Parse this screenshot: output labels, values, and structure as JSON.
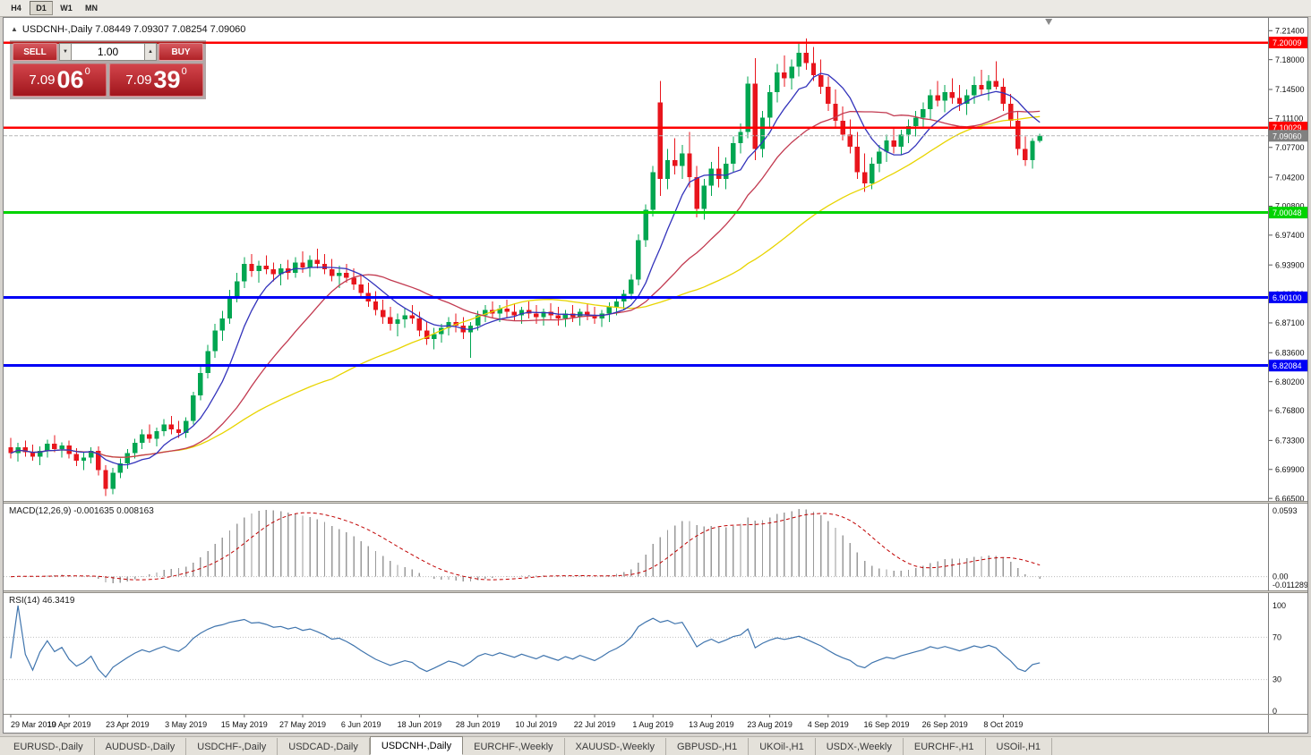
{
  "toolbar": {
    "timeframes": [
      {
        "label": "H4",
        "active": false
      },
      {
        "label": "D1",
        "active": true
      },
      {
        "label": "W1",
        "active": false
      },
      {
        "label": "MN",
        "active": false
      }
    ]
  },
  "chart": {
    "info_line": "USDCNH-,Daily  7.08449 7.09307 7.08254 7.09060",
    "symbol": "USDCNH-,Daily",
    "ohlc": {
      "open": "7.08449",
      "high": "7.09307",
      "low": "7.08254",
      "close": "7.09060"
    }
  },
  "icons": {
    "one_click_collapse": "▲",
    "volume_down": "▼",
    "volume_up": "▲"
  },
  "trade_panel": {
    "sell_label": "SELL",
    "buy_label": "BUY",
    "volume": "1.00",
    "sell_price": {
      "big": "7.09",
      "pips": "06",
      "point": "0"
    },
    "buy_price": {
      "big": "7.09",
      "pips": "39",
      "point": "0"
    }
  },
  "macd_pane": {
    "label": "MACD(12,26,9) -0.001635 0.008163",
    "axis_labels": [
      "0.0593",
      "0.00",
      "-0.011289"
    ]
  },
  "rsi_pane": {
    "label": "RSI(14) 46.3419",
    "axis_labels": [
      "100",
      "70",
      "30",
      "0"
    ],
    "levels": [
      70,
      30
    ]
  },
  "tabs": [
    {
      "label": "EURUSD-,Daily",
      "active": false
    },
    {
      "label": "AUDUSD-,Daily",
      "active": false
    },
    {
      "label": "USDCHF-,Daily",
      "active": false
    },
    {
      "label": "USDCAD-,Daily",
      "active": false
    },
    {
      "label": "USDCNH-,Daily",
      "active": true
    },
    {
      "label": "EURCHF-,Weekly",
      "active": false
    },
    {
      "label": "XAUUSD-,Weekly",
      "active": false
    },
    {
      "label": "GBPUSD-,H1",
      "active": false
    },
    {
      "label": "UKOil-,H1",
      "active": false
    },
    {
      "label": "USDX-,Weekly",
      "active": false
    },
    {
      "label": "EURCHF-,H1",
      "active": false
    },
    {
      "label": "USOil-,H1",
      "active": false
    }
  ],
  "chart_data": {
    "type": "candlestick",
    "title": "USDCNH-,Daily",
    "ylim": [
      6.662,
      7.229
    ],
    "x_start": 8,
    "x_step": 8.15,
    "y_ticks": [
      "7.21400",
      "7.18000",
      "7.14500",
      "7.11100",
      "7.07700",
      "7.04200",
      "7.00800",
      "6.97400",
      "6.93900",
      "6.90500",
      "6.87100",
      "6.83600",
      "6.80200",
      "6.76800",
      "6.73300",
      "6.69900",
      "6.66500"
    ],
    "x_labels": [
      {
        "i": 0,
        "label": "29 Mar 2019"
      },
      {
        "i": 8,
        "label": "10 Apr 2019"
      },
      {
        "i": 16,
        "label": "23 Apr 2019"
      },
      {
        "i": 24,
        "label": "3 May 2019"
      },
      {
        "i": 32,
        "label": "15 May 2019"
      },
      {
        "i": 40,
        "label": "27 May 2019"
      },
      {
        "i": 48,
        "label": "6 Jun 2019"
      },
      {
        "i": 56,
        "label": "18 Jun 2019"
      },
      {
        "i": 64,
        "label": "28 Jun 2019"
      },
      {
        "i": 72,
        "label": "10 Jul 2019"
      },
      {
        "i": 80,
        "label": "22 Jul 2019"
      },
      {
        "i": 88,
        "label": "1 Aug 2019"
      },
      {
        "i": 96,
        "label": "13 Aug 2019"
      },
      {
        "i": 104,
        "label": "23 Aug 2019"
      },
      {
        "i": 112,
        "label": "4 Sep 2019"
      },
      {
        "i": 120,
        "label": "16 Sep 2019"
      },
      {
        "i": 128,
        "label": "26 Sep 2019"
      },
      {
        "i": 136,
        "label": "8 Oct 2019"
      }
    ],
    "colors": {
      "bull": "#00a651",
      "bear": "#e8151c",
      "macd_hist": "#9a9a9a",
      "macd_signal": "#c00000",
      "rsi_line": "#3f74ad"
    },
    "moving_averages": [
      {
        "period": 8,
        "color": "#3333bb"
      },
      {
        "period": 20,
        "color": "#c23a50"
      },
      {
        "period": 45,
        "color": "#e8d400"
      }
    ],
    "levels": [
      {
        "price": 7.20009,
        "label": "7.20009",
        "color": "#fe0000",
        "width": 2.5
      },
      {
        "price": 7.10029,
        "label": "7.10029",
        "color": "#fe0000",
        "width": 2.5
      },
      {
        "price": 7.00048,
        "label": "7.00048",
        "color": "#00d300",
        "width": 3
      },
      {
        "price": 6.901,
        "label": "6.90100",
        "color": "#0000f5",
        "width": 3
      },
      {
        "price": 6.82084,
        "label": "6.82084",
        "color": "#0000f5",
        "width": 3
      }
    ],
    "current_price": {
      "value": 7.0906,
      "label": "7.09060",
      "color": "#808080"
    },
    "candles": [
      [
        6.725,
        6.736,
        6.712,
        6.718
      ],
      [
        6.718,
        6.73,
        6.708,
        6.725
      ],
      [
        6.725,
        6.733,
        6.714,
        6.719
      ],
      [
        6.719,
        6.728,
        6.709,
        6.714
      ],
      [
        6.714,
        6.726,
        6.704,
        6.721
      ],
      [
        6.721,
        6.734,
        6.713,
        6.729
      ],
      [
        6.729,
        6.739,
        6.719,
        6.723
      ],
      [
        6.723,
        6.731,
        6.713,
        6.727
      ],
      [
        6.727,
        6.733,
        6.712,
        6.717
      ],
      [
        6.717,
        6.724,
        6.703,
        6.709
      ],
      [
        6.709,
        6.719,
        6.698,
        6.713
      ],
      [
        6.713,
        6.725,
        6.706,
        6.721
      ],
      [
        6.721,
        6.726,
        6.692,
        6.698
      ],
      [
        6.698,
        6.704,
        6.668,
        6.676
      ],
      [
        6.676,
        6.701,
        6.67,
        6.695
      ],
      [
        6.695,
        6.712,
        6.689,
        6.706
      ],
      [
        6.706,
        6.723,
        6.7,
        6.718
      ],
      [
        6.718,
        6.735,
        6.712,
        6.73
      ],
      [
        6.73,
        6.746,
        6.723,
        6.74
      ],
      [
        6.74,
        6.752,
        6.73,
        6.735
      ],
      [
        6.735,
        6.748,
        6.726,
        6.744
      ],
      [
        6.744,
        6.758,
        6.738,
        6.752
      ],
      [
        6.752,
        6.762,
        6.74,
        6.746
      ],
      [
        6.746,
        6.756,
        6.736,
        6.742
      ],
      [
        6.742,
        6.76,
        6.736,
        6.756
      ],
      [
        6.756,
        6.79,
        6.752,
        6.786
      ],
      [
        6.786,
        6.82,
        6.78,
        6.812
      ],
      [
        6.812,
        6.845,
        6.806,
        6.838
      ],
      [
        6.838,
        6.87,
        6.83,
        6.862
      ],
      [
        6.862,
        6.885,
        6.85,
        6.876
      ],
      [
        6.876,
        6.91,
        6.87,
        6.902
      ],
      [
        6.902,
        6.93,
        6.895,
        6.92
      ],
      [
        6.92,
        6.948,
        6.912,
        6.94
      ],
      [
        6.94,
        6.952,
        6.925,
        6.932
      ],
      [
        6.932,
        6.944,
        6.918,
        6.938
      ],
      [
        6.938,
        6.95,
        6.928,
        6.934
      ],
      [
        6.934,
        6.942,
        6.92,
        6.928
      ],
      [
        6.928,
        6.94,
        6.915,
        6.935
      ],
      [
        6.935,
        6.945,
        6.922,
        6.93
      ],
      [
        6.93,
        6.948,
        6.924,
        6.942
      ],
      [
        6.942,
        6.955,
        6.93,
        6.936
      ],
      [
        6.936,
        6.95,
        6.925,
        6.945
      ],
      [
        6.945,
        6.958,
        6.935,
        6.94
      ],
      [
        6.94,
        6.952,
        6.928,
        6.934
      ],
      [
        6.934,
        6.946,
        6.92,
        6.926
      ],
      [
        6.926,
        6.938,
        6.912,
        6.93
      ],
      [
        6.93,
        6.94,
        6.918,
        6.924
      ],
      [
        6.924,
        6.935,
        6.91,
        6.916
      ],
      [
        6.916,
        6.928,
        6.9,
        6.906
      ],
      [
        6.906,
        6.918,
        6.89,
        6.896
      ],
      [
        6.896,
        6.908,
        6.88,
        6.886
      ],
      [
        6.886,
        6.898,
        6.87,
        6.878
      ],
      [
        6.878,
        6.89,
        6.862,
        6.87
      ],
      [
        6.87,
        6.882,
        6.855,
        6.875
      ],
      [
        6.875,
        6.888,
        6.865,
        6.88
      ],
      [
        6.88,
        6.892,
        6.87,
        6.876
      ],
      [
        6.876,
        6.884,
        6.855,
        6.862
      ],
      [
        6.862,
        6.872,
        6.845,
        6.852
      ],
      [
        6.852,
        6.865,
        6.84,
        6.858
      ],
      [
        6.858,
        6.87,
        6.848,
        6.865
      ],
      [
        6.865,
        6.878,
        6.856,
        6.872
      ],
      [
        6.872,
        6.882,
        6.86,
        6.868
      ],
      [
        6.868,
        6.878,
        6.852,
        6.86
      ],
      [
        6.86,
        6.872,
        6.83,
        6.868
      ],
      [
        6.868,
        6.885,
        6.862,
        6.88
      ],
      [
        6.88,
        6.892,
        6.872,
        6.886
      ],
      [
        6.886,
        6.896,
        6.876,
        6.882
      ],
      [
        6.882,
        6.892,
        6.872,
        6.888
      ],
      [
        6.888,
        6.898,
        6.878,
        6.884
      ],
      [
        6.884,
        6.894,
        6.874,
        6.88
      ],
      [
        6.88,
        6.89,
        6.87,
        6.886
      ],
      [
        6.886,
        6.896,
        6.876,
        6.882
      ],
      [
        6.882,
        6.892,
        6.87,
        6.878
      ],
      [
        6.878,
        6.888,
        6.868,
        6.884
      ],
      [
        6.884,
        6.894,
        6.874,
        6.88
      ],
      [
        6.88,
        6.89,
        6.868,
        6.876
      ],
      [
        6.876,
        6.886,
        6.866,
        6.882
      ],
      [
        6.882,
        6.892,
        6.872,
        6.878
      ],
      [
        6.878,
        6.888,
        6.868,
        6.884
      ],
      [
        6.884,
        6.894,
        6.874,
        6.88
      ],
      [
        6.88,
        6.89,
        6.87,
        6.876
      ],
      [
        6.876,
        6.886,
        6.866,
        6.882
      ],
      [
        6.882,
        6.895,
        6.872,
        6.89
      ],
      [
        6.89,
        6.902,
        6.88,
        6.896
      ],
      [
        6.896,
        6.91,
        6.886,
        6.905
      ],
      [
        6.905,
        6.928,
        6.898,
        6.922
      ],
      [
        6.922,
        6.975,
        6.915,
        6.968
      ],
      [
        6.968,
        7.01,
        6.96,
        7.004
      ],
      [
        7.004,
        7.055,
        6.996,
        7.048
      ],
      [
        7.13,
        7.155,
        7.02,
        7.04
      ],
      [
        7.04,
        7.075,
        7.028,
        7.062
      ],
      [
        7.062,
        7.088,
        7.045,
        7.055
      ],
      [
        7.055,
        7.08,
        7.04,
        7.07
      ],
      [
        7.07,
        7.095,
        7.03,
        7.042
      ],
      [
        7.042,
        7.055,
        6.995,
        7.005
      ],
      [
        7.005,
        7.04,
        6.992,
        7.032
      ],
      [
        7.032,
        7.06,
        7.02,
        7.052
      ],
      [
        7.052,
        7.078,
        7.03,
        7.04
      ],
      [
        7.04,
        7.065,
        7.028,
        7.058
      ],
      [
        7.058,
        7.09,
        7.048,
        7.082
      ],
      [
        7.082,
        7.105,
        7.07,
        7.095
      ],
      [
        7.095,
        7.16,
        7.088,
        7.152
      ],
      [
        7.152,
        7.182,
        7.062,
        7.075
      ],
      [
        7.075,
        7.12,
        7.065,
        7.112
      ],
      [
        7.112,
        7.15,
        7.1,
        7.142
      ],
      [
        7.142,
        7.175,
        7.13,
        7.165
      ],
      [
        7.165,
        7.185,
        7.148,
        7.158
      ],
      [
        7.158,
        7.18,
        7.145,
        7.172
      ],
      [
        7.172,
        7.2,
        7.16,
        7.188
      ],
      [
        7.188,
        7.205,
        7.168,
        7.176
      ],
      [
        7.176,
        7.195,
        7.155,
        7.162
      ],
      [
        7.162,
        7.18,
        7.14,
        7.148
      ],
      [
        7.148,
        7.16,
        7.12,
        7.128
      ],
      [
        7.128,
        7.145,
        7.1,
        7.108
      ],
      [
        7.108,
        7.125,
        7.085,
        7.092
      ],
      [
        7.092,
        7.11,
        7.07,
        7.078
      ],
      [
        7.078,
        7.095,
        7.04,
        7.048
      ],
      [
        7.048,
        7.07,
        7.025,
        7.035
      ],
      [
        7.035,
        7.065,
        7.028,
        7.058
      ],
      [
        7.058,
        7.08,
        7.048,
        7.072
      ],
      [
        7.072,
        7.092,
        7.06,
        7.085
      ],
      [
        7.085,
        7.1,
        7.07,
        7.078
      ],
      [
        7.078,
        7.098,
        7.068,
        7.092
      ],
      [
        7.092,
        7.11,
        7.082,
        7.102
      ],
      [
        7.102,
        7.12,
        7.09,
        7.112
      ],
      [
        7.112,
        7.13,
        7.1,
        7.122
      ],
      [
        7.122,
        7.145,
        7.11,
        7.138
      ],
      [
        7.138,
        7.155,
        7.125,
        7.132
      ],
      [
        7.132,
        7.15,
        7.118,
        7.142
      ],
      [
        7.142,
        7.158,
        7.128,
        7.135
      ],
      [
        7.135,
        7.15,
        7.12,
        7.128
      ],
      [
        7.128,
        7.145,
        7.115,
        7.138
      ],
      [
        7.138,
        7.16,
        7.128,
        7.15
      ],
      [
        7.15,
        7.168,
        7.138,
        7.145
      ],
      [
        7.145,
        7.162,
        7.132,
        7.155
      ],
      [
        7.155,
        7.178,
        7.145,
        7.148
      ],
      [
        7.148,
        7.158,
        7.12,
        7.128
      ],
      [
        7.128,
        7.14,
        7.1,
        7.108
      ],
      [
        7.108,
        7.12,
        7.068,
        7.075
      ],
      [
        7.075,
        7.09,
        7.055,
        7.062
      ],
      [
        7.062,
        7.088,
        7.052,
        7.0845
      ],
      [
        7.08449,
        7.09307,
        7.08254,
        7.0906
      ]
    ]
  }
}
